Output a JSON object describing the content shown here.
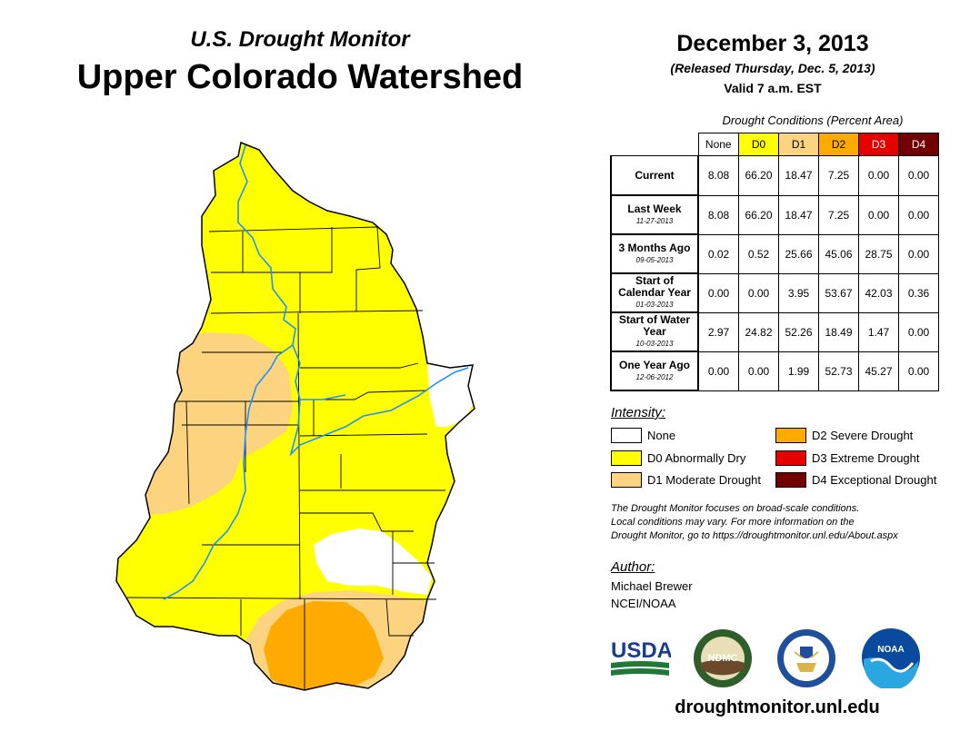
{
  "header": {
    "subtitle": "U.S. Drought Monitor",
    "title": "Upper Colorado Watershed",
    "date": "December 3, 2013",
    "released": "(Released Thursday, Dec. 5, 2013)",
    "valid": "Valid 7 a.m. EST"
  },
  "table": {
    "caption": "Drought Conditions (Percent Area)",
    "columns": [
      "None",
      "D0",
      "D1",
      "D2",
      "D3",
      "D4"
    ],
    "rows": [
      {
        "label": "Current",
        "date": "",
        "values": [
          "8.08",
          "66.20",
          "18.47",
          "7.25",
          "0.00",
          "0.00"
        ]
      },
      {
        "label": "Last Week",
        "date": "11-27-2013",
        "values": [
          "8.08",
          "66.20",
          "18.47",
          "7.25",
          "0.00",
          "0.00"
        ]
      },
      {
        "label": "3 Months Ago",
        "date": "09-05-2013",
        "values": [
          "0.02",
          "0.52",
          "25.66",
          "45.06",
          "28.75",
          "0.00"
        ]
      },
      {
        "label": "Start of Calendar Year",
        "date": "01-03-2013",
        "values": [
          "0.00",
          "0.00",
          "3.95",
          "53.67",
          "42.03",
          "0.36"
        ]
      },
      {
        "label": "Start of Water Year",
        "date": "10-03-2013",
        "values": [
          "2.97",
          "24.82",
          "52.26",
          "18.49",
          "1.47",
          "0.00"
        ]
      },
      {
        "label": "One Year Ago",
        "date": "12-06-2012",
        "values": [
          "0.00",
          "0.00",
          "1.99",
          "52.73",
          "45.27",
          "0.00"
        ]
      }
    ]
  },
  "legend": {
    "title": "Intensity:",
    "items": [
      {
        "label": "None",
        "color": "#ffffff"
      },
      {
        "label": "D0 Abnormally Dry",
        "color": "#ffff00"
      },
      {
        "label": "D1 Moderate Drought",
        "color": "#fcd37f"
      },
      {
        "label": "D2 Severe Drought",
        "color": "#ffaa00"
      },
      {
        "label": "D3 Extreme Drought",
        "color": "#e60000"
      },
      {
        "label": "D4 Exceptional Drought",
        "color": "#730000"
      }
    ]
  },
  "note": {
    "line1": "The Drought Monitor focuses on broad-scale conditions.",
    "line2": "Local conditions may vary. For more information on the",
    "line3": "Drought Monitor, go to https://droughtmonitor.unl.edu/About.aspx"
  },
  "author": {
    "title": "Author:",
    "name": "Michael Brewer",
    "org": "NCEI/NOAA"
  },
  "logos": {
    "usda": "USDA",
    "ndmc": "NDMC",
    "noaa": "NOAA"
  },
  "website": "droughtmonitor.unl.edu",
  "colors": {
    "d0": "#ffff00",
    "d1": "#fcd37f",
    "d2": "#ffaa00",
    "d3": "#e60000",
    "d4": "#730000",
    "river": "#1e90ff"
  }
}
